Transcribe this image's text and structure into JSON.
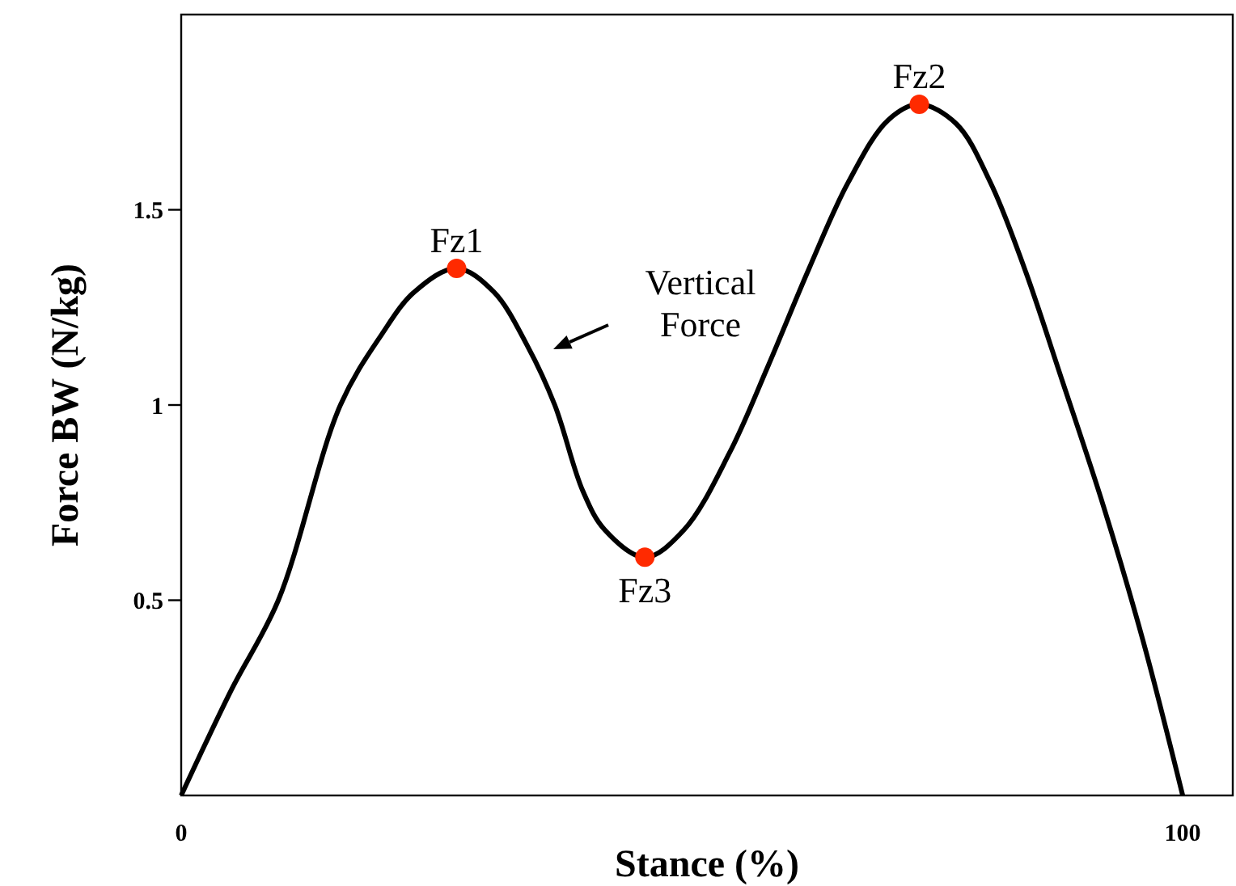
{
  "chart_data": {
    "type": "line",
    "xlabel": "Stance (%)",
    "ylabel": "Force BW (N/kg)",
    "xlim": [
      0,
      105
    ],
    "ylim": [
      0,
      2
    ],
    "xticks": [
      0,
      100
    ],
    "yticks": [
      0.5,
      1,
      1.5
    ],
    "grid": false,
    "line_style": "solid",
    "series": [
      {
        "color": "#000000",
        "marker": "none",
        "x": [
          0,
          5,
          9.7,
          15.9,
          20,
          23.3,
          27.5,
          31.2,
          34.6,
          37.3,
          40.1,
          42.3,
          46.3,
          50.2,
          54.8,
          58.6,
          62.7,
          66.6,
          70.6,
          73.7,
          77.4,
          80.8,
          84.2,
          88,
          92.1,
          96,
          100
        ],
        "values": [
          0,
          0.27,
          0.5,
          1,
          1.18,
          1.29,
          1.35,
          1.29,
          1.15,
          1,
          0.78,
          0.68,
          0.61,
          0.68,
          0.88,
          1.1,
          1.35,
          1.57,
          1.73,
          1.77,
          1.72,
          1.57,
          1.35,
          1.06,
          0.74,
          0.4,
          0
        ]
      },
      {
        "type": "scatter",
        "color": "#ff2a00",
        "marker": "circle",
        "x": [
          27.5,
          73.7,
          46.3
        ],
        "values": [
          1.35,
          1.77,
          0.61
        ]
      }
    ],
    "annotations": [
      {
        "text": "Fz1",
        "x": 27.5,
        "y": 1.35
      },
      {
        "text": "Fz2",
        "x": 73.7,
        "y": 1.77
      },
      {
        "text": "Fz3",
        "x": 46.3,
        "y": 0.61
      },
      "Vertical\nForce"
    ]
  }
}
